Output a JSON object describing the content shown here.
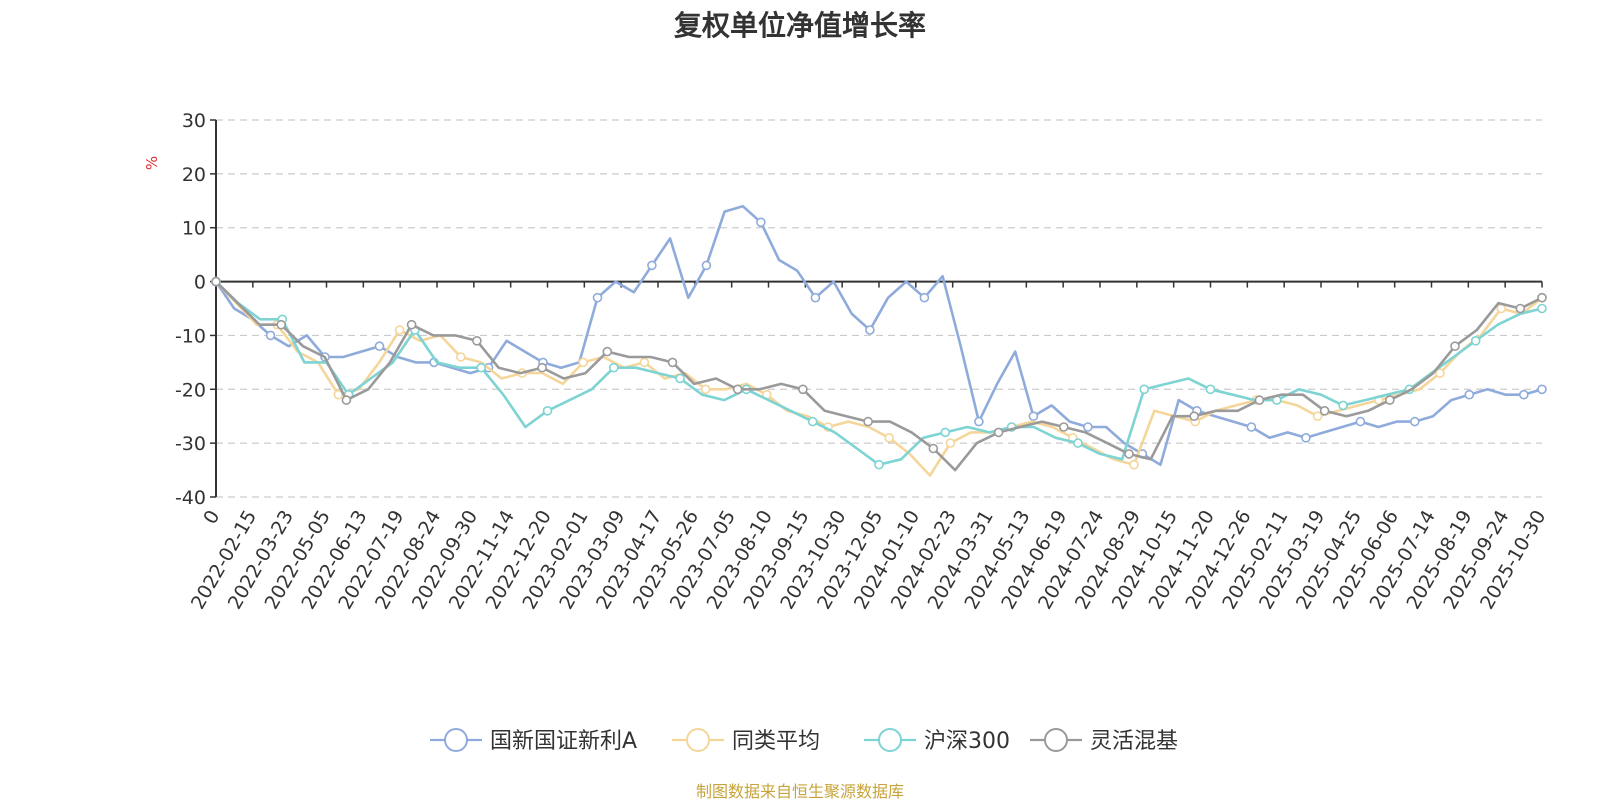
{
  "title": "复权单位净值增长率",
  "source_note": "制图数据来自恒生聚源数据库",
  "colors": {
    "axis": "#333333",
    "grid": "#cccccc",
    "unit": "#e03030",
    "source": "#c7a43b"
  },
  "chart_data": {
    "type": "line",
    "title": "复权单位净值增长率",
    "ylabel": "%",
    "ylim": [
      -40,
      30
    ],
    "yticks": [
      30,
      20,
      10,
      0,
      -10,
      -20,
      -30,
      -40
    ],
    "grid": true,
    "legend_position": "bottom-center",
    "x_tick_labels": [
      "0",
      "2022-02-15",
      "2022-03-23",
      "2022-05-05",
      "2022-06-13",
      "2022-07-19",
      "2022-08-24",
      "2022-09-30",
      "2022-11-14",
      "2022-12-20",
      "2023-02-01",
      "2023-03-09",
      "2023-04-17",
      "2023-05-26",
      "2023-07-05",
      "2023-08-10",
      "2023-09-15",
      "2023-10-30",
      "2023-12-05",
      "2024-01-10",
      "2024-02-23",
      "2024-03-31",
      "2024-05-13",
      "2024-06-19",
      "2024-07-24",
      "2024-08-29",
      "2024-10-15",
      "2024-11-20",
      "2024-12-26",
      "2025-02-11",
      "2025-03-19",
      "2025-04-25",
      "2025-06-06",
      "2025-07-14",
      "2025-08-19",
      "2025-09-24",
      "2025-10-30"
    ],
    "series": [
      {
        "name": "国新国证新利A",
        "color": "#8fabdb",
        "values": [
          0,
          -5,
          -7,
          -10,
          -12,
          -10,
          -14,
          -14,
          -13,
          -12,
          -14,
          -15,
          -15,
          -16,
          -17,
          -16,
          -11,
          -13,
          -15,
          -16,
          -15,
          -3,
          0,
          -2,
          3,
          8,
          -3,
          3,
          13,
          14,
          11,
          4,
          2,
          -3,
          0,
          -6,
          -9,
          -3,
          0,
          -3,
          1,
          -12,
          -26,
          -19,
          -13,
          -25,
          -23,
          -26,
          -27,
          -27,
          -30,
          -32,
          -34,
          -22,
          -24,
          -25,
          -26,
          -27,
          -29,
          -28,
          -29,
          -28,
          -27,
          -26,
          -27,
          -26,
          -26,
          -25,
          -22,
          -21,
          -20,
          -21,
          -21,
          -20
        ]
      },
      {
        "name": "同类平均",
        "color": "#f5d69a",
        "values": [
          0,
          -4,
          -8,
          -8,
          -13,
          -15,
          -21,
          -20,
          -15,
          -9,
          -11,
          -10,
          -14,
          -15,
          -18,
          -17,
          -17,
          -19,
          -15,
          -14,
          -16,
          -15,
          -18,
          -17,
          -20,
          -20,
          -19,
          -21,
          -24,
          -25,
          -27,
          -26,
          -27,
          -29,
          -32,
          -36,
          -30,
          -28,
          -28,
          -27,
          -26,
          -27,
          -29,
          -31,
          -33,
          -34,
          -24,
          -25,
          -26,
          -24,
          -23,
          -22,
          -22,
          -23,
          -25,
          -24,
          -23,
          -22,
          -21,
          -20,
          -17,
          -13,
          -10,
          -5,
          -6,
          -3
        ]
      },
      {
        "name": "沪深300",
        "color": "#7ed3d3",
        "values": [
          0,
          -4,
          -7,
          -7,
          -15,
          -15,
          -21,
          -18,
          -15,
          -9,
          -15,
          -16,
          -16,
          -21,
          -27,
          -24,
          -22,
          -20,
          -16,
          -16,
          -17,
          -18,
          -21,
          -22,
          -20,
          -22,
          -24,
          -26,
          -28,
          -31,
          -34,
          -33,
          -29,
          -28,
          -27,
          -28,
          -27,
          -27,
          -29,
          -30,
          -32,
          -33,
          -20,
          -19,
          -18,
          -20,
          -21,
          -22,
          -22,
          -20,
          -21,
          -23,
          -22,
          -21,
          -20,
          -17,
          -14,
          -11,
          -8,
          -6,
          -5
        ]
      },
      {
        "name": "灵活混基",
        "color": "#9a9a9a",
        "values": [
          0,
          -4,
          -8,
          -8,
          -12,
          -14,
          -22,
          -20,
          -15,
          -8,
          -10,
          -10,
          -11,
          -16,
          -17,
          -16,
          -18,
          -17,
          -13,
          -14,
          -14,
          -15,
          -19,
          -18,
          -20,
          -20,
          -19,
          -20,
          -24,
          -25,
          -26,
          -26,
          -28,
          -31,
          -35,
          -30,
          -28,
          -27,
          -26,
          -27,
          -28,
          -30,
          -32,
          -33,
          -25,
          -25,
          -24,
          -24,
          -22,
          -21,
          -21,
          -24,
          -25,
          -24,
          -22,
          -20,
          -17,
          -12,
          -9,
          -4,
          -5,
          -3
        ]
      }
    ]
  }
}
